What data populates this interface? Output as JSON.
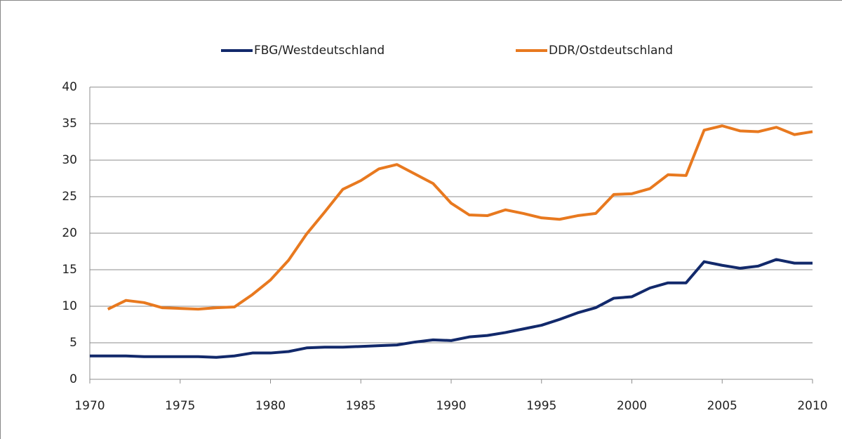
{
  "chart_data": {
    "type": "line",
    "x": [
      1970,
      1971,
      1972,
      1973,
      1974,
      1975,
      1976,
      1977,
      1978,
      1979,
      1980,
      1981,
      1982,
      1983,
      1984,
      1985,
      1986,
      1987,
      1988,
      1989,
      1990,
      1991,
      1992,
      1993,
      1994,
      1995,
      1996,
      1997,
      1998,
      1999,
      2000,
      2001,
      2002,
      2003,
      2004,
      2005,
      2006,
      2007,
      2008,
      2009,
      2010
    ],
    "series": [
      {
        "name": "FBG/Westdeutschland",
        "color": "#12296b",
        "values": [
          3.2,
          3.2,
          3.2,
          3.1,
          3.1,
          3.1,
          3.1,
          3.0,
          3.2,
          3.6,
          3.6,
          3.8,
          4.3,
          4.4,
          4.4,
          4.5,
          4.6,
          4.7,
          5.1,
          5.4,
          5.3,
          5.8,
          6.0,
          6.4,
          6.9,
          7.4,
          8.2,
          9.1,
          9.8,
          11.1,
          11.3,
          12.5,
          13.2,
          13.2,
          16.1,
          15.6,
          15.2,
          15.5,
          16.4,
          15.9,
          15.9
        ]
      },
      {
        "name": "DDR/Ostdeutschland",
        "color": "#e8791f",
        "values": [
          null,
          9.6,
          10.8,
          10.5,
          9.8,
          9.7,
          9.6,
          9.8,
          9.9,
          11.6,
          13.6,
          16.3,
          19.9,
          22.9,
          26.0,
          27.2,
          28.8,
          29.4,
          28.1,
          26.8,
          24.1,
          22.5,
          22.4,
          23.2,
          22.7,
          22.1,
          21.9,
          22.4,
          22.7,
          25.3,
          25.4,
          26.1,
          28.0,
          27.9,
          34.1,
          34.7,
          34.0,
          33.9,
          34.5,
          33.5,
          33.9
        ]
      }
    ],
    "xlim": [
      1970,
      2010
    ],
    "xticks": [
      1970,
      1975,
      1980,
      1985,
      1990,
      1995,
      2000,
      2005,
      2010
    ],
    "ylim": [
      0,
      40
    ],
    "yticks": [
      0,
      5,
      10,
      15,
      20,
      25,
      30,
      35,
      40
    ],
    "grid": true,
    "legend": "top"
  }
}
